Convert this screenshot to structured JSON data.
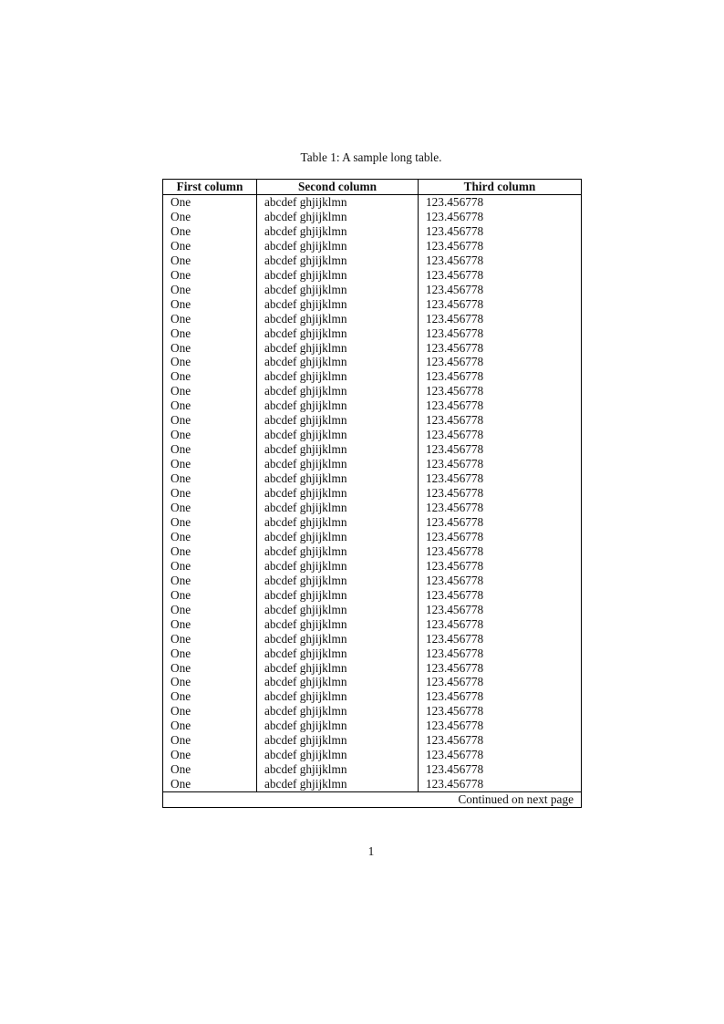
{
  "caption": "Table 1: A sample long table.",
  "table": {
    "headers": [
      "First column",
      "Second column",
      "Third column"
    ],
    "row": [
      "One",
      "abcdef ghjijklmn",
      "123.456778"
    ],
    "row_count": 41,
    "footer": "Continued on next page"
  },
  "page_number": "1"
}
